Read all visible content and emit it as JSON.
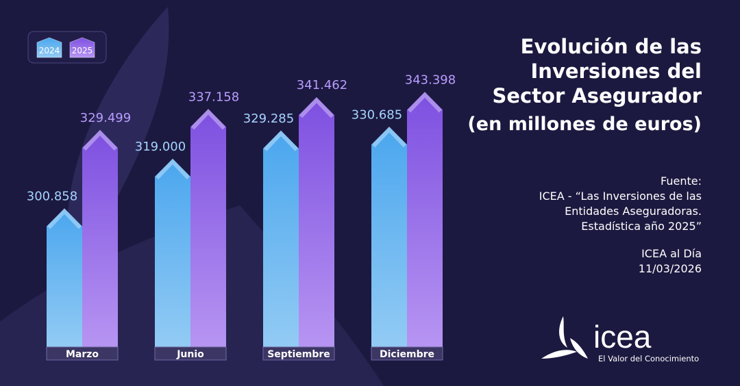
{
  "chart_data": {
    "type": "bar",
    "title": [
      "Evolución de las",
      "Inversiones del",
      "Sector Asegurador",
      "(en millones de euros)"
    ],
    "categories": [
      "Marzo",
      "Junio",
      "Septiembre",
      "Diciembre"
    ],
    "series": [
      {
        "name": "2024",
        "color": "#4aa6ee",
        "values": [
          300858,
          319000,
          329285,
          330685
        ],
        "value_labels": [
          "300.858",
          "319.000",
          "329.285",
          "330.685"
        ]
      },
      {
        "name": "2025",
        "color": "#7d4fe0",
        "values": [
          329499,
          337158,
          341462,
          343398
        ],
        "value_labels": [
          "329.499",
          "337.158",
          "341.462",
          "343.398"
        ]
      }
    ],
    "ylim": [
      250000,
      350000
    ],
    "source": [
      "Fuente:",
      "ICEA - “Las Inversiones de las",
      "Entidades Aseguradoras.",
      "Estadística año 2025”"
    ],
    "note": [
      "ICEA al Día",
      "11/03/2026"
    ]
  },
  "logo": {
    "name": "icea",
    "tagline": "El Valor del Conocimiento"
  }
}
